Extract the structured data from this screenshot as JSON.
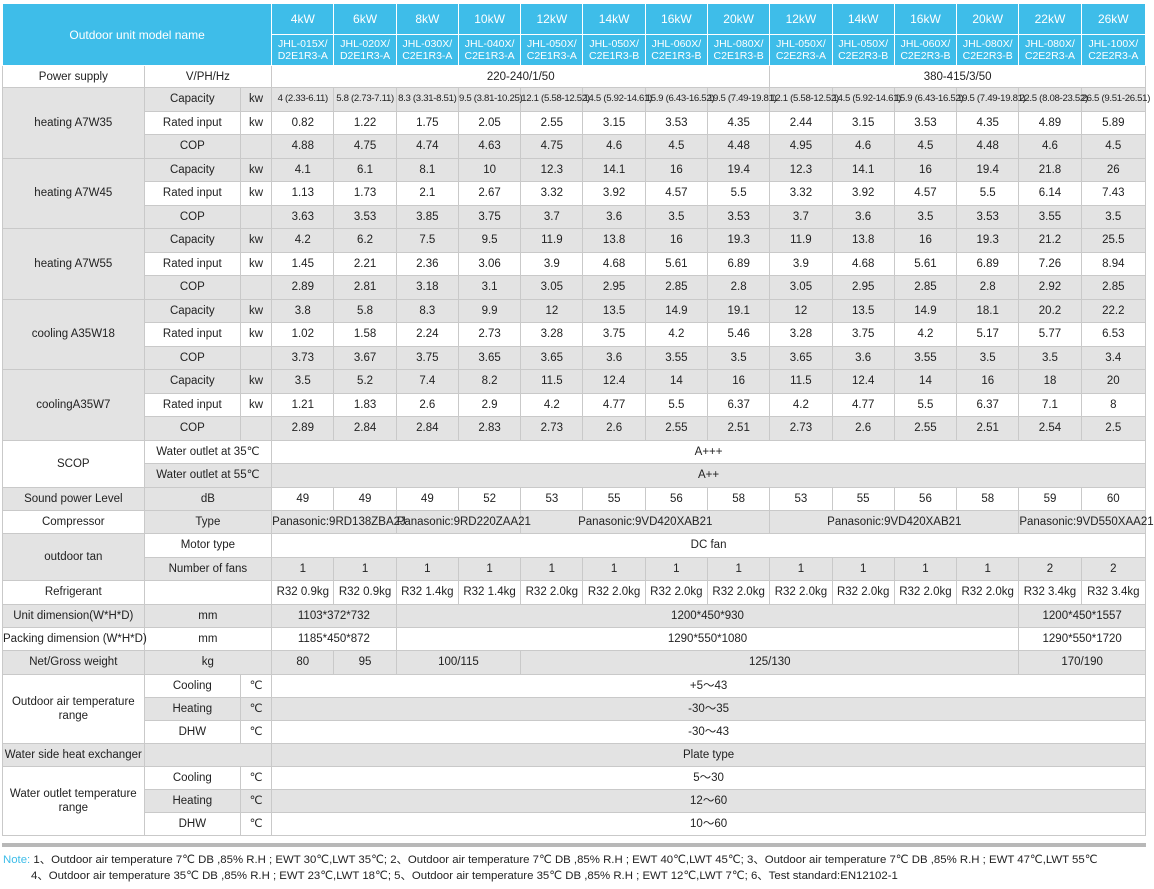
{
  "header": {
    "title": "Outdoor unit model name",
    "powers": [
      "4kW",
      "6kW",
      "8kW",
      "10kW",
      "12kW",
      "14kW",
      "16kW",
      "20kW",
      "12kW",
      "14kW",
      "16kW",
      "20kW",
      "22kW",
      "26kW"
    ],
    "models": [
      [
        "JHL-015X/",
        "D2E1R3-A"
      ],
      [
        "JHL-020X/",
        "D2E1R3-A"
      ],
      [
        "JHL-030X/",
        "C2E1R3-A"
      ],
      [
        "JHL-040X/",
        "C2E1R3-A"
      ],
      [
        "JHL-050X/",
        "C2E1R3-A"
      ],
      [
        "JHL-050X/",
        "C2E1R3-B"
      ],
      [
        "JHL-060X/",
        "C2E1R3-B"
      ],
      [
        "JHL-080X/",
        "C2E1R3-B"
      ],
      [
        "JHL-050X/",
        "C2E2R3-A"
      ],
      [
        "JHL-050X/",
        "C2E2R3-B"
      ],
      [
        "JHL-060X/",
        "C2E2R3-B"
      ],
      [
        "JHL-080X/",
        "C2E2R3-B"
      ],
      [
        "JHL-080X/",
        "C2E2R3-A"
      ],
      [
        "JHL-100X/",
        "C2E2R3-A"
      ]
    ]
  },
  "power_supply": {
    "label": "Power supply",
    "param": "V/PH/Hz",
    "single": "220-240/1/50",
    "three": "380-415/3/50"
  },
  "labels": {
    "capacity": "Capacity",
    "rated_input": "Rated input",
    "cop": "COP",
    "kw": "kw"
  },
  "performance": [
    {
      "name": "heating A7W35",
      "capacity": [
        "4 (2.33-6.11)",
        "5.8 (2.73-7.11)",
        "8.3 (3.31-8.51)",
        "9.5 (3.81-10.25)",
        "12.1 (5.58-12.52)",
        "14.5 (5.92-14.61)",
        "15.9 (6.43-16.52)",
        "19.5 (7.49-19.81)",
        "12.1 (5.58-12.52)",
        "14.5 (5.92-14.61)",
        "15.9 (6.43-16.52)",
        "19.5 (7.49-19.81)",
        "22.5 (8.08-23.52)",
        "26.5 (9.51-26.51)"
      ],
      "rated_input": [
        "0.82",
        "1.22",
        "1.75",
        "2.05",
        "2.55",
        "3.15",
        "3.53",
        "4.35",
        "2.44",
        "3.15",
        "3.53",
        "4.35",
        "4.89",
        "5.89"
      ],
      "cop": [
        "4.88",
        "4.75",
        "4.74",
        "4.63",
        "4.75",
        "4.6",
        "4.5",
        "4.48",
        "4.95",
        "4.6",
        "4.5",
        "4.48",
        "4.6",
        "4.5"
      ]
    },
    {
      "name": "heating A7W45",
      "capacity": [
        "4.1",
        "6.1",
        "8.1",
        "10",
        "12.3",
        "14.1",
        "16",
        "19.4",
        "12.3",
        "14.1",
        "16",
        "19.4",
        "21.8",
        "26"
      ],
      "rated_input": [
        "1.13",
        "1.73",
        "2.1",
        "2.67",
        "3.32",
        "3.92",
        "4.57",
        "5.5",
        "3.32",
        "3.92",
        "4.57",
        "5.5",
        "6.14",
        "7.43"
      ],
      "cop": [
        "3.63",
        "3.53",
        "3.85",
        "3.75",
        "3.7",
        "3.6",
        "3.5",
        "3.53",
        "3.7",
        "3.6",
        "3.5",
        "3.53",
        "3.55",
        "3.5"
      ]
    },
    {
      "name": "heating A7W55",
      "capacity": [
        "4.2",
        "6.2",
        "7.5",
        "9.5",
        "11.9",
        "13.8",
        "16",
        "19.3",
        "11.9",
        "13.8",
        "16",
        "19.3",
        "21.2",
        "25.5"
      ],
      "rated_input": [
        "1.45",
        "2.21",
        "2.36",
        "3.06",
        "3.9",
        "4.68",
        "5.61",
        "6.89",
        "3.9",
        "4.68",
        "5.61",
        "6.89",
        "7.26",
        "8.94"
      ],
      "cop": [
        "2.89",
        "2.81",
        "3.18",
        "3.1",
        "3.05",
        "2.95",
        "2.85",
        "2.8",
        "3.05",
        "2.95",
        "2.85",
        "2.8",
        "2.92",
        "2.85"
      ]
    },
    {
      "name": "cooling A35W18",
      "capacity": [
        "3.8",
        "5.8",
        "8.3",
        "9.9",
        "12",
        "13.5",
        "14.9",
        "19.1",
        "12",
        "13.5",
        "14.9",
        "18.1",
        "20.2",
        "22.2"
      ],
      "rated_input": [
        "1.02",
        "1.58",
        "2.24",
        "2.73",
        "3.28",
        "3.75",
        "4.2",
        "5.46",
        "3.28",
        "3.75",
        "4.2",
        "5.17",
        "5.77",
        "6.53"
      ],
      "cop": [
        "3.73",
        "3.67",
        "3.75",
        "3.65",
        "3.65",
        "3.6",
        "3.55",
        "3.5",
        "3.65",
        "3.6",
        "3.55",
        "3.5",
        "3.5",
        "3.4"
      ]
    },
    {
      "name": "coolingA35W7",
      "capacity": [
        "3.5",
        "5.2",
        "7.4",
        "8.2",
        "11.5",
        "12.4",
        "14",
        "16",
        "11.5",
        "12.4",
        "14",
        "16",
        "18",
        "20"
      ],
      "rated_input": [
        "1.21",
        "1.83",
        "2.6",
        "2.9",
        "4.2",
        "4.77",
        "5.5",
        "6.37",
        "4.2",
        "4.77",
        "5.5",
        "6.37",
        "7.1",
        "8"
      ],
      "cop": [
        "2.89",
        "2.84",
        "2.84",
        "2.83",
        "2.73",
        "2.6",
        "2.55",
        "2.51",
        "2.73",
        "2.6",
        "2.55",
        "2.51",
        "2.54",
        "2.5"
      ]
    }
  ],
  "scop": {
    "label": "SCOP",
    "rows": [
      {
        "param": "Water outlet at 35℃",
        "value": "A+++"
      },
      {
        "param": "Water outlet at 55℃",
        "value": "A++"
      }
    ]
  },
  "sound": {
    "label": "Sound power Level",
    "unit": "dB",
    "values": [
      "49",
      "49",
      "49",
      "52",
      "53",
      "55",
      "56",
      "58",
      "53",
      "55",
      "56",
      "58",
      "59",
      "60"
    ]
  },
  "compressor": {
    "label": "Compressor",
    "param": "Type",
    "values": [
      "Panasonic:9RD138ZBA2J",
      "Panasonic:9RD220ZAA21",
      "Panasonic:9VD420XAB21",
      "Panasonic:9VD420XAB21",
      "Panasonic:9VD550XAA21"
    ]
  },
  "fan": {
    "label": "outdoor tan",
    "motor_label": "Motor type",
    "motor_value": "DC fan",
    "count_label": "Number of fans",
    "counts": [
      "1",
      "1",
      "1",
      "1",
      "1",
      "1",
      "1",
      "1",
      "1",
      "1",
      "1",
      "1",
      "2",
      "2"
    ]
  },
  "refrigerant": {
    "label": "Refrigerant",
    "values": [
      "R32 0.9kg",
      "R32 0.9kg",
      "R32 1.4kg",
      "R32 1.4kg",
      "R32 2.0kg",
      "R32 2.0kg",
      "R32 2.0kg",
      "R32 2.0kg",
      "R32 2.0kg",
      "R32 2.0kg",
      "R32 2.0kg",
      "R32 2.0kg",
      "R32 3.4kg",
      "R32 3.4kg"
    ]
  },
  "unit_dim": {
    "label": "Unit dimension(W*H*D)",
    "unit": "mm",
    "values": [
      "1103*372*732",
      "1200*450*930",
      "1200*450*1557"
    ]
  },
  "pack_dim": {
    "label": "Packing dimension (W*H*D)",
    "unit": "mm",
    "values": [
      "1185*450*872",
      "1290*550*1080",
      "1290*550*1720"
    ]
  },
  "weight": {
    "label": "Net/Gross weight",
    "unit": "kg",
    "values": [
      "80",
      "95",
      "100/115",
      "125/130",
      "170/190"
    ]
  },
  "outdoor_air": {
    "label": "Outdoor air temperature range",
    "rows": [
      {
        "mode": "Cooling",
        "unit": "℃",
        "value": "+5～43"
      },
      {
        "mode": "Heating",
        "unit": "℃",
        "value": "-30～35"
      },
      {
        "mode": "DHW",
        "unit": "℃",
        "value": "-30～43"
      }
    ]
  },
  "heat_exchanger": {
    "label": "Water side heat exchanger",
    "value": "Plate type"
  },
  "water_outlet": {
    "label": "Water outlet temperature range",
    "rows": [
      {
        "mode": "Cooling",
        "unit": "℃",
        "value": "5～30"
      },
      {
        "mode": "Heating",
        "unit": "℃",
        "value": "12～60"
      },
      {
        "mode": "DHW",
        "unit": "℃",
        "value": "10～60"
      }
    ]
  },
  "notes": {
    "label": "Note:",
    "line1": " 1、Outdoor air temperature 7℃ DB ,85% R.H ; EWT 30℃,LWT 35℃;  2、Outdoor air temperature 7℃ DB ,85% R.H ; EWT 40℃,LWT 45℃;  3、Outdoor air temperature 7℃ DB ,85% R.H ; EWT 47℃,LWT 55℃",
    "line2": "4、Outdoor air temperature 35℃ DB ,85% R.H ; EWT 23℃,LWT 18℃;  5、Outdoor air temperature 35℃ DB ,85% R.H ; EWT 12℃,LWT 7℃;  6、Test standard:EN12102-1"
  }
}
